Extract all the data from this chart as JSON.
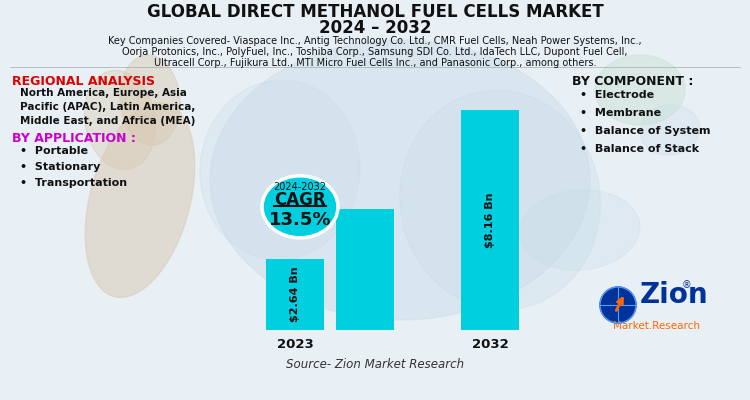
{
  "title_line1": "GLOBAL DIRECT METHANOL FUEL CELLS MARKET",
  "title_line2": "2024 – 2032",
  "companies_line1": "Key Companies Covered- Viaspace Inc., Antig Technology Co. Ltd., CMR Fuel Cells, Neah Power Systems, Inc.,",
  "companies_line2": "Oorja Protonics, Inc., PolyFuel, Inc., Toshiba Corp., Samsung SDI Co. Ltd., IdaTech LLC, Dupont Fuel Cell,",
  "companies_line3": "Ultracell Corp., Fujikura Ltd., MTI Micro Fuel Cells Inc., and Panasonic Corp., among others.",
  "regional_title": "REGIONAL ANALYSIS",
  "regional_text": "North America, Europe, Asia\nPacific (APAC), Latin America,\nMiddle East, and Africa (MEA)",
  "app_title": "BY APPLICATION :",
  "app_items": [
    "Portable",
    "Stationary",
    "Transportation"
  ],
  "component_title": "BY COMPONENT :",
  "component_items": [
    "Electrode",
    "Membrane",
    "Balance of System",
    "Balance of Stack"
  ],
  "cagr_line1": "2024-2032",
  "cagr_line2": "CAGR",
  "cagr_value": "13.5%",
  "bar_values": [
    2.64,
    4.5,
    8.16
  ],
  "bar_labels": [
    "$2.64 Bn",
    "",
    "$8.16 Bn"
  ],
  "bar_years": [
    "2023",
    "",
    "2032"
  ],
  "bar_color": "#00cfe0",
  "source_text": "Source- Zion Market Research",
  "bg_color": "#e8f0f5",
  "title_color": "#111111",
  "regional_title_color": "#dd0000",
  "app_title_color": "#cc00cc",
  "cagr_ellipse_color": "#00cfe0",
  "map_color1": "#c8dce8",
  "map_color2": "#d8c8b0",
  "map_color3": "#c8e0d0"
}
